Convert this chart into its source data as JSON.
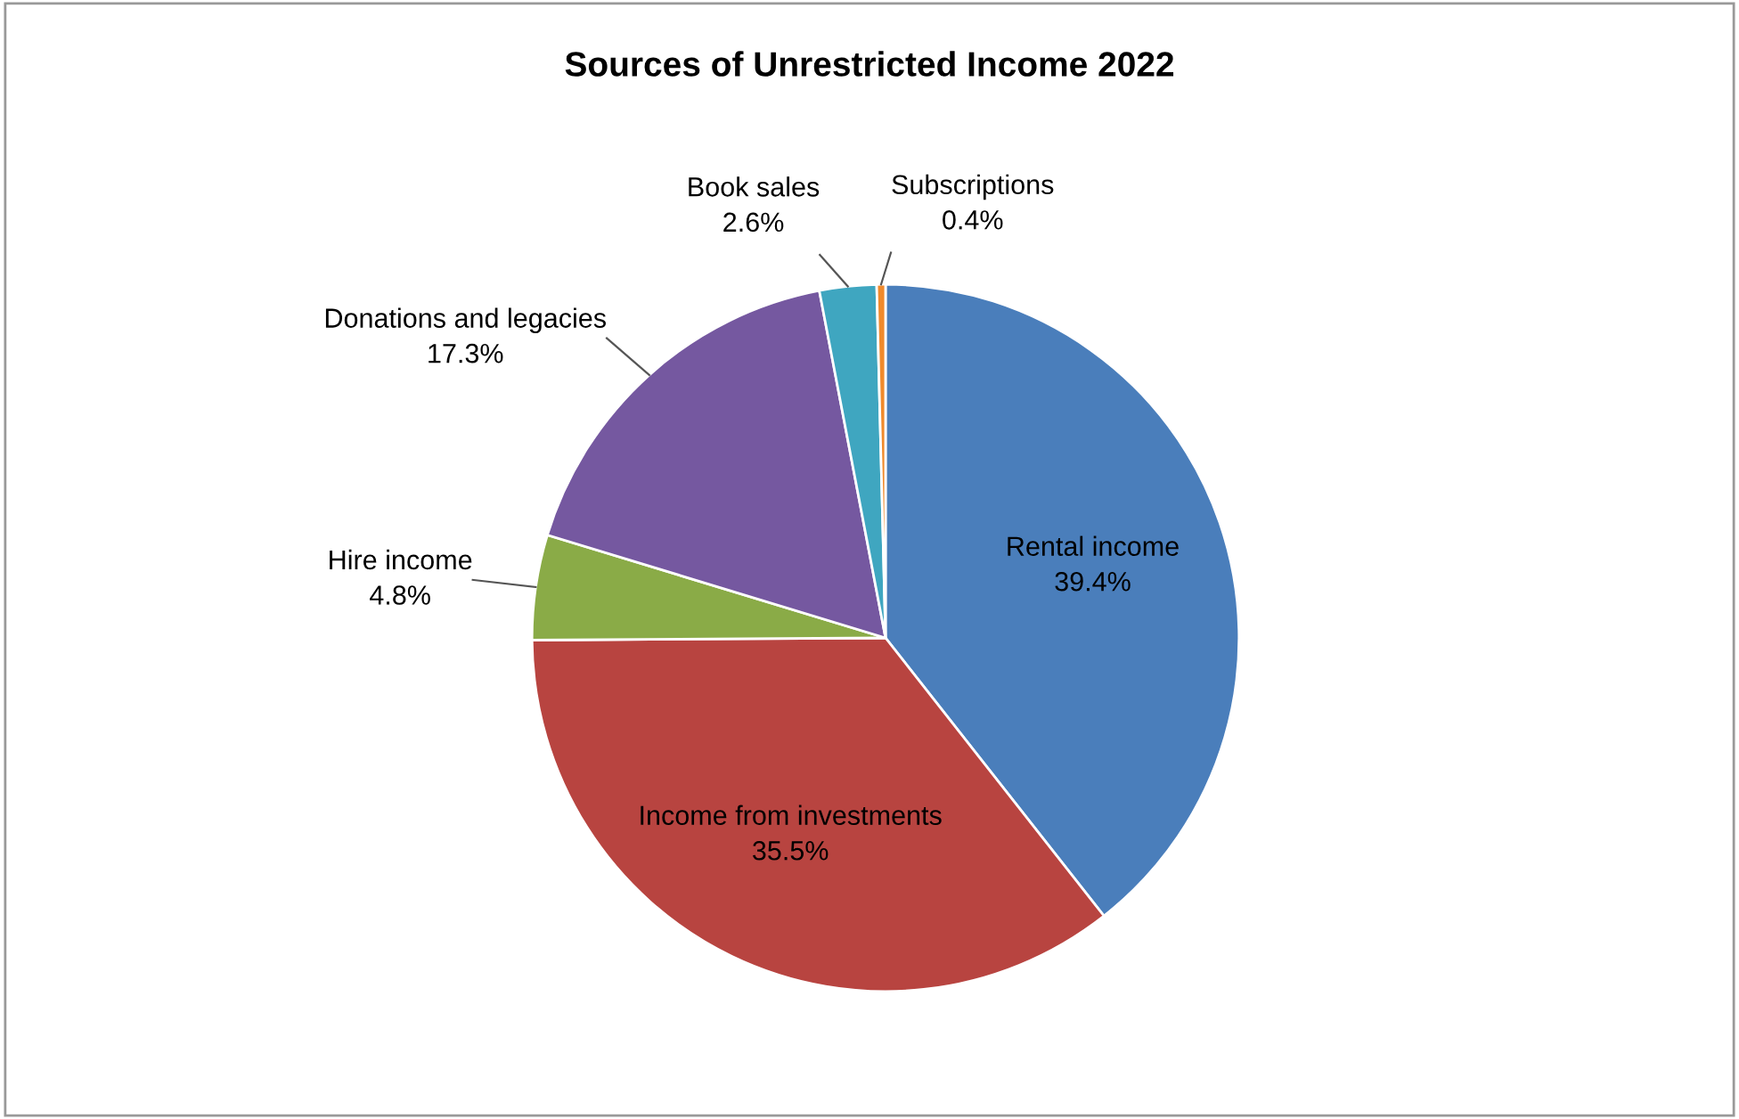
{
  "chart_data": {
    "type": "pie",
    "title": "Sources of Unrestricted Income 2022",
    "categories": [
      "Rental income",
      "Income from investments",
      "Hire income",
      "Donations and legacies",
      "Book sales",
      "Subscriptions"
    ],
    "values": [
      39.4,
      35.5,
      4.8,
      17.3,
      2.6,
      0.4
    ],
    "colors": [
      "#4a7ebb",
      "#b84440",
      "#8aab47",
      "#7558a0",
      "#3fa6c0",
      "#f08a2c"
    ],
    "value_labels": [
      "39.4%",
      "35.5%",
      "4.8%",
      "17.3%",
      "2.6%",
      "0.4%"
    ],
    "legend": false
  }
}
